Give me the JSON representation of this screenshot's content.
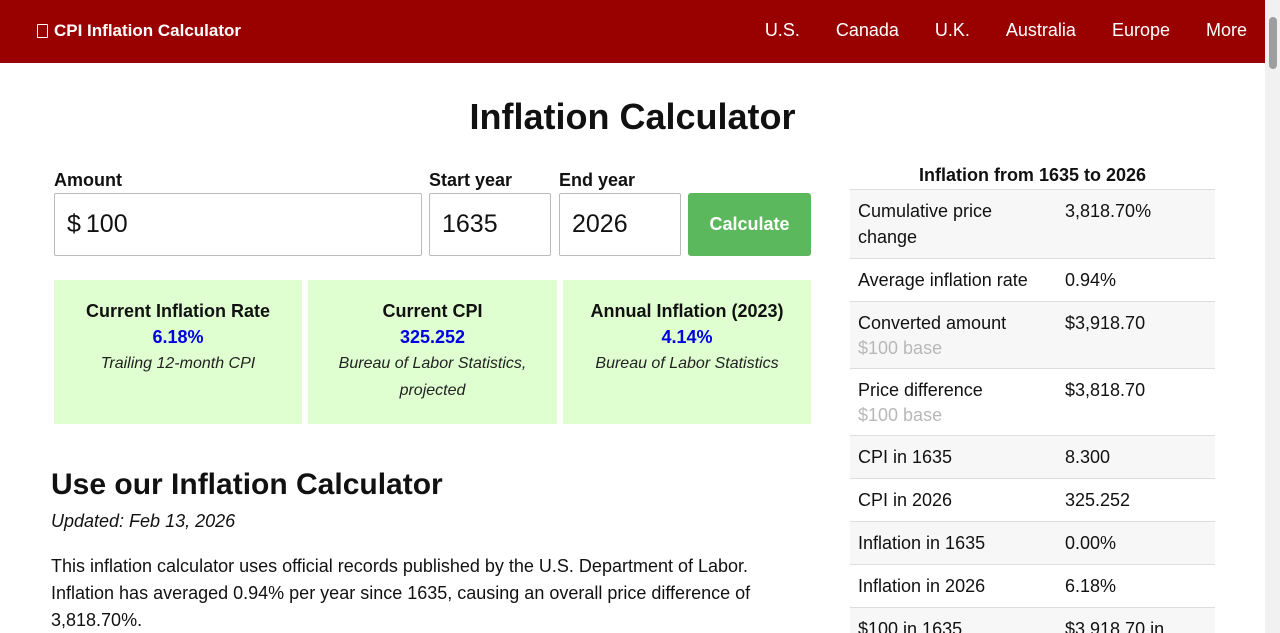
{
  "nav": {
    "brand": "CPI Inflation Calculator",
    "links": [
      "U.S.",
      "Canada",
      "U.K.",
      "Australia",
      "Europe",
      "More"
    ]
  },
  "page_title": "Inflation Calculator",
  "form": {
    "amount_label": "Amount",
    "amount_prefix": "$",
    "amount_value": "100",
    "start_label": "Start year",
    "start_value": "1635",
    "end_label": "End year",
    "end_value": "2026",
    "calculate_label": "Calculate"
  },
  "cards": [
    {
      "title": "Current Inflation Rate",
      "value": "6.18%",
      "note": "Trailing 12-month CPI"
    },
    {
      "title": "Current CPI",
      "value": "325.252",
      "note": "Bureau of Labor Statistics, projected"
    },
    {
      "title": "Annual Inflation (2023)",
      "value": "4.14%",
      "note": "Bureau of Labor Statistics"
    }
  ],
  "section": {
    "title": "Use our Inflation Calculator",
    "updated": "Updated: Feb 13, 2026",
    "intro": "This inflation calculator uses official records published by the U.S. Department of Labor. Inflation has averaged 0.94% per year since 1635, causing an overall price difference of 3,818.70%."
  },
  "sidebar": {
    "title": "Inflation from 1635 to 2026",
    "rows": [
      {
        "label": "Cumulative price change",
        "sub": "",
        "value": "3,818.70%"
      },
      {
        "label": "Average inflation rate",
        "sub": "",
        "value": "0.94%"
      },
      {
        "label": "Converted amount",
        "sub": "$100 base",
        "value": "$3,918.70"
      },
      {
        "label": "Price difference",
        "sub": "$100 base",
        "value": "$3,818.70"
      },
      {
        "label": "CPI in 1635",
        "sub": "",
        "value": "8.300"
      },
      {
        "label": "CPI in 2026",
        "sub": "",
        "value": "325.252"
      },
      {
        "label": "Inflation in 1635",
        "sub": "",
        "value": "0.00%"
      },
      {
        "label": "Inflation in 2026",
        "sub": "",
        "value": "6.18%"
      },
      {
        "label": "$100 in 1635",
        "sub": "",
        "value": "$3,918.70 in"
      }
    ]
  }
}
